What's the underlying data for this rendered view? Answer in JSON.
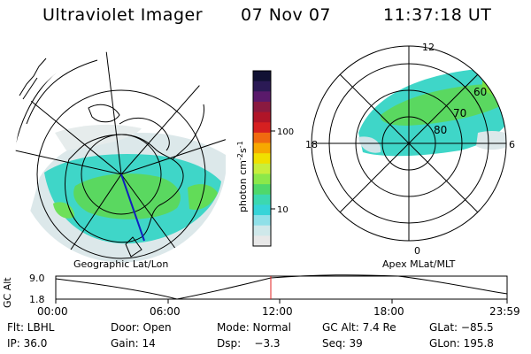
{
  "header": {
    "app_title": "Ultraviolet Imager",
    "date": "07 Nov 07",
    "time": "11:37:18 UT"
  },
  "colorbar": {
    "label": "photon cm",
    "label_sup1": "-2",
    "label_mid": "s",
    "label_sup2": "-1",
    "tick_labels": [
      "100",
      "10"
    ],
    "colors": [
      "#111133",
      "#2b1a55",
      "#5a1a6b",
      "#8a1a40",
      "#b01528",
      "#d62020",
      "#f06a10",
      "#f7a800",
      "#f0e000",
      "#c8ee3c",
      "#8ce84a",
      "#4fd86a",
      "#3cd8b0",
      "#36d4d8",
      "#8fe0e8",
      "#cfe8ea",
      "#e8e8e8"
    ]
  },
  "geo_panel": {
    "label": "Geographic Lat/Lon"
  },
  "apex_panel": {
    "label": "Apex  MLat/MLT",
    "mlt_labels": {
      "top": "12",
      "bottom": "0",
      "left": "18",
      "right": "6"
    },
    "lat_labels": [
      "60",
      "70",
      "80"
    ]
  },
  "altitude_strip": {
    "axis_label": "GC Alt",
    "y_ticks": [
      "9.0",
      "1.8"
    ],
    "x_ticks": [
      "00:00",
      "06:00",
      "12:00",
      "18:00",
      "23:59"
    ],
    "marker_time": "11:37"
  },
  "info": {
    "row1": {
      "filter": "Flt: LBHL",
      "door": "Door: Open",
      "mode": "Mode: Normal",
      "gc_alt": "GC Alt: 7.4 Re",
      "glat": "GLat: −85.5"
    },
    "row2": {
      "ip": "IP: 36.0",
      "gain": "Gain: 14",
      "dsp": "Dsp:    −3.3",
      "seq": "Seq: 39",
      "glon": "GLon: 195.8"
    }
  }
}
